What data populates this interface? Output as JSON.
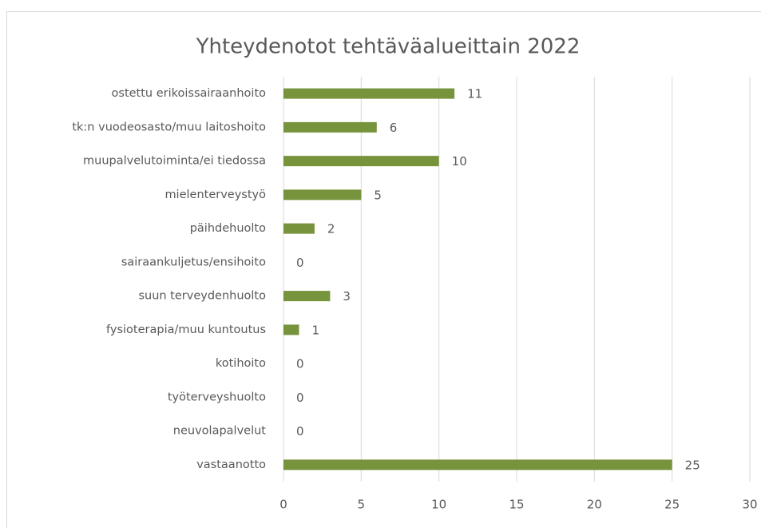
{
  "chart_data": {
    "type": "bar",
    "orientation": "horizontal",
    "title": "Yhteydenotot tehtäväalueittain 2022",
    "categories": [
      "ostettu erikoissairaanhoito",
      "tk:n vuodeosasto/muu laitoshoito",
      "muupalvelutoiminta/ei tiedossa",
      "mielenterveystyö",
      "päihdehuolto",
      "sairaankuljetus/ensihoito",
      "suun terveydenhuolto",
      "fysioterapia/muu kuntoutus",
      "kotihoito",
      "työterveyshuolto",
      "neuvolapalvelut",
      "vastaanotto"
    ],
    "values": [
      11,
      6,
      10,
      5,
      2,
      0,
      3,
      1,
      0,
      0,
      0,
      25
    ],
    "color": "#77933c",
    "xlim": [
      0,
      30
    ],
    "xticks": [
      0,
      5,
      10,
      15,
      20,
      25,
      30
    ],
    "grid": true
  }
}
